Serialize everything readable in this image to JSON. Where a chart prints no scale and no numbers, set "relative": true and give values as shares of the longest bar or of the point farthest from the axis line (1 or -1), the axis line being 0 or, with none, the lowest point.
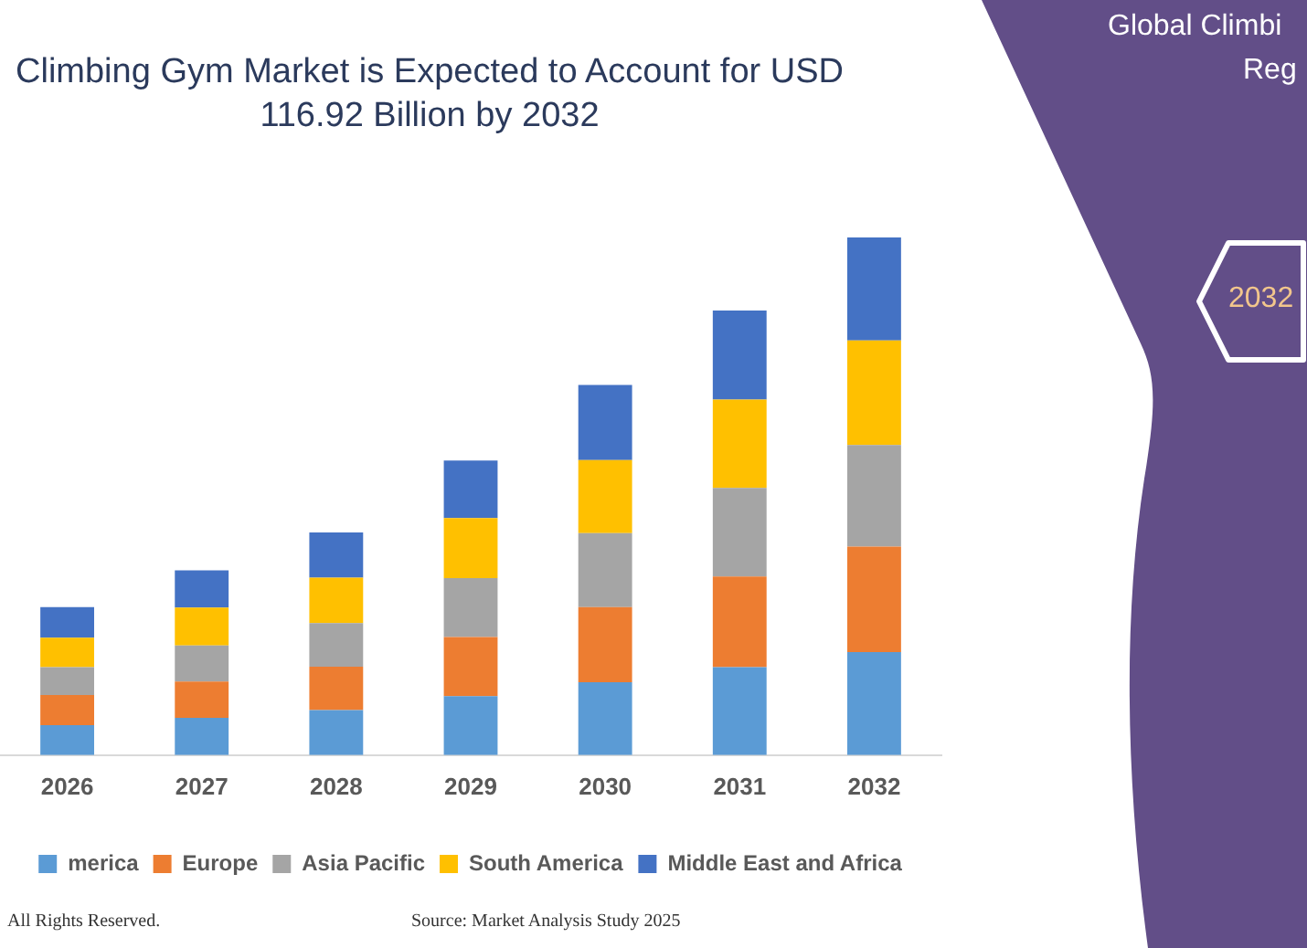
{
  "chart_data": {
    "type": "bar",
    "title": "Climbing Gym Market is Expected to Account for USD 116.92 Billion by 2032",
    "categories": [
      "2026",
      "2027",
      "2028",
      "2029",
      "2030",
      "2031",
      "2032"
    ],
    "series": [
      {
        "name": "merica",
        "color": "#5b9bd5",
        "values": [
          0.058,
          0.072,
          0.087,
          0.114,
          0.141,
          0.17,
          0.199
        ]
      },
      {
        "name": "Europe",
        "color": "#ed7d31",
        "values": [
          0.058,
          0.07,
          0.084,
          0.114,
          0.145,
          0.175,
          0.204
        ]
      },
      {
        "name": "Asia Pacific",
        "color": "#a5a5a5",
        "values": [
          0.054,
          0.07,
          0.084,
          0.114,
          0.143,
          0.171,
          0.196
        ]
      },
      {
        "name": "South America",
        "color": "#ffc000",
        "values": [
          0.057,
          0.073,
          0.088,
          0.116,
          0.141,
          0.171,
          0.202
        ]
      },
      {
        "name": "Middle East and Africa",
        "color": "#4472c4",
        "values": [
          0.059,
          0.072,
          0.087,
          0.111,
          0.145,
          0.172,
          0.199
        ]
      }
    ],
    "stacked": true,
    "relative": true,
    "legend": "bottom",
    "annotations": [
      "All Rights Reserved.",
      "Source: Market Analysis Study 2025",
      "Global Climbi",
      "Reg",
      "2032"
    ]
  }
}
